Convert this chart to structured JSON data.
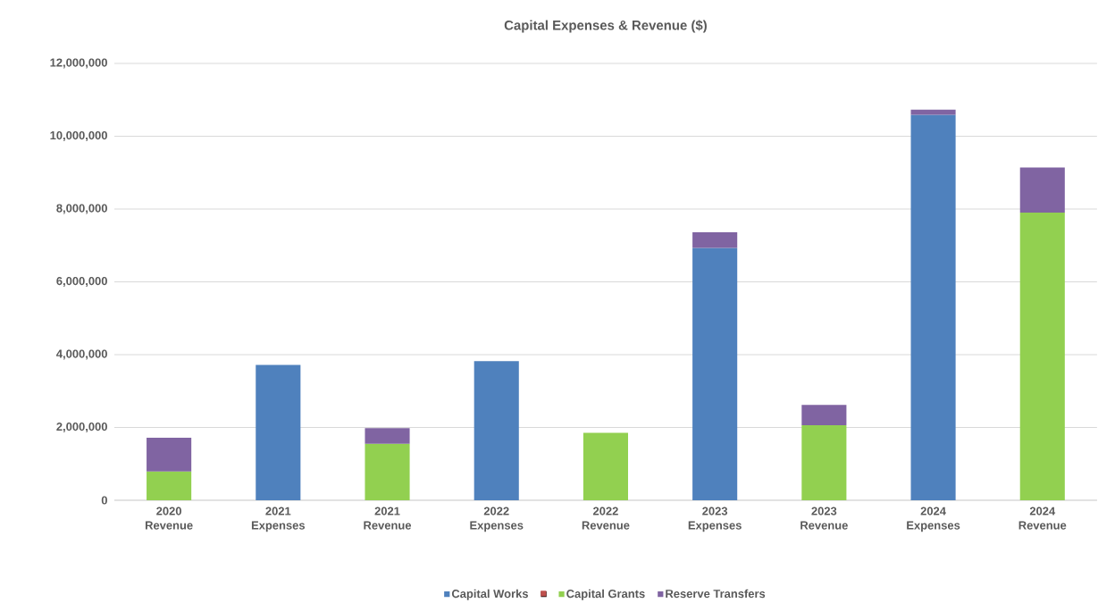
{
  "chart_data": {
    "type": "bar",
    "title": "Capital Expenses & Revenue ($)",
    "stacked": true,
    "categories": [
      "2020 Revenue",
      "2021 Expenses",
      "2021 Revenue",
      "2022 Expenses",
      "2022 Revenue",
      "2023 Expenses",
      "2023 Revenue",
      "2024 Expenses",
      "2024 Revenue"
    ],
    "series": [
      {
        "name": "Capital Works",
        "color": "#4f81bd",
        "values": [
          null,
          3720000,
          null,
          3820000,
          null,
          6930000,
          null,
          10590000,
          null
        ]
      },
      {
        "color": "#c0504d",
        "values": [
          null,
          null,
          null,
          null,
          null,
          null,
          null,
          null,
          null
        ]
      },
      {
        "name": "Capital Grants",
        "color": "#92d050",
        "values": [
          790000,
          null,
          1550000,
          null,
          1850000,
          null,
          2060000,
          null,
          7900000
        ]
      },
      {
        "name": "Reserve Transfers",
        "color": "#8064a2",
        "values": [
          930000,
          null,
          430000,
          null,
          null,
          430000,
          560000,
          140000,
          1240000
        ]
      }
    ],
    "ylim": [
      0,
      12000000
    ],
    "yticks": [
      0,
      {
        "value": 2000000,
        "label": "2,000,000"
      },
      {
        "value": 4000000,
        "label": "4,000,000"
      },
      {
        "value": 6000000,
        "label": "6,000,000"
      },
      {
        "value": 8000000,
        "label": "8,000,000"
      },
      {
        "value": 10000000,
        "label": "10,000,000"
      },
      {
        "value": 12000000,
        "label": "12,000,000"
      }
    ],
    "grid": "y",
    "legend": "bottom"
  }
}
